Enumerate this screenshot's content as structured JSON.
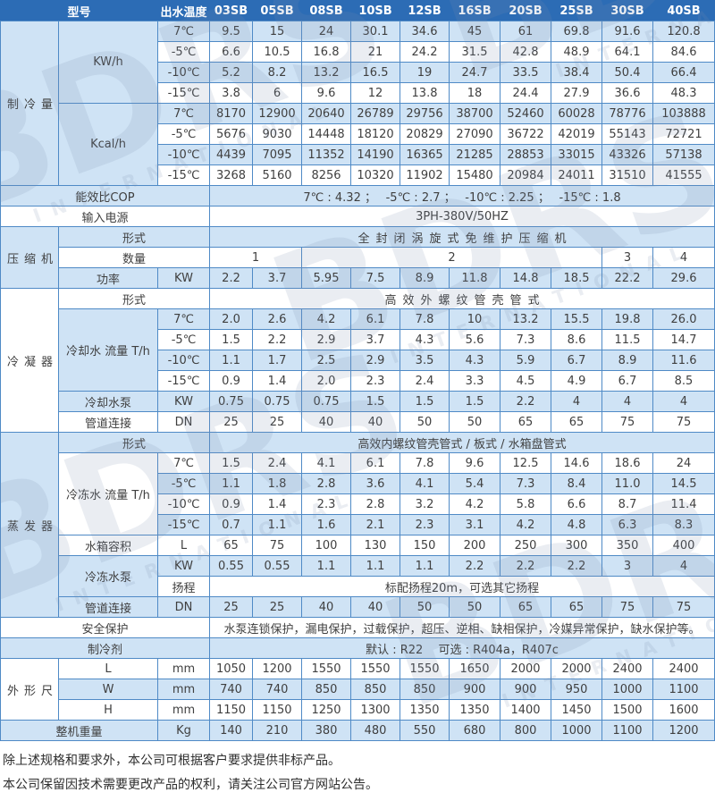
{
  "header": {
    "model": "型号",
    "outlet_temp": "出水温度",
    "models": [
      "03SB",
      "05SB",
      "08SB",
      "10SB",
      "12SB",
      "16SB",
      "20SB",
      "25SB",
      "30SB",
      "40SB"
    ]
  },
  "temps": {
    "t7": "7℃",
    "t5": "-5℃",
    "t10": "-10℃",
    "t15": "-15℃"
  },
  "cooling": {
    "label": "制冷量",
    "kw_label": "KW/h",
    "kcal_label": "Kcal/h",
    "kw": {
      "t7": [
        "9.5",
        "15",
        "24",
        "30.1",
        "34.6",
        "45",
        "61",
        "69.8",
        "91.6",
        "120.8"
      ],
      "t5": [
        "6.6",
        "10.5",
        "16.8",
        "21",
        "24.2",
        "31.5",
        "42.8",
        "48.9",
        "64.1",
        "84.6"
      ],
      "t10": [
        "5.2",
        "8.2",
        "13.2",
        "16.5",
        "19",
        "24.7",
        "33.5",
        "38.4",
        "50.4",
        "66.4"
      ],
      "t15": [
        "3.8",
        "6",
        "9.6",
        "12",
        "13.8",
        "18",
        "24.4",
        "27.9",
        "36.6",
        "48.3"
      ]
    },
    "kcal": {
      "t7": [
        "8170",
        "12900",
        "20640",
        "26789",
        "29756",
        "38700",
        "52460",
        "60028",
        "78776",
        "103888"
      ],
      "t5": [
        "5676",
        "9030",
        "14448",
        "18120",
        "20829",
        "27090",
        "36722",
        "42019",
        "55143",
        "72721"
      ],
      "t10": [
        "4439",
        "7095",
        "11352",
        "14190",
        "16365",
        "21285",
        "28853",
        "33015",
        "43326",
        "57138"
      ],
      "t15": [
        "3268",
        "5160",
        "8256",
        "10320",
        "11902",
        "15480",
        "20984",
        "24011",
        "31510",
        "41555"
      ]
    }
  },
  "cop": {
    "label": "能效比COP",
    "value": "7℃ : 4.32 ；　 -5℃ : 2.7 ；　 -10℃ : 2.25 ；　 -15℃ : 1.8"
  },
  "power_supply": {
    "label": "输入电源",
    "value": "3PH-380V/50HZ"
  },
  "compressor": {
    "label": "压缩机",
    "type_label": "形式",
    "type_value": "全封闭涡旋式免维护压缩机",
    "qty_label": "数量",
    "qty": [
      "1",
      "2",
      "3",
      "4"
    ],
    "power_label": "功率",
    "power_unit": "KW",
    "power": [
      "2.2",
      "3.7",
      "5.95",
      "7.5",
      "8.9",
      "11.8",
      "14.8",
      "18.5",
      "22.2",
      "29.6"
    ]
  },
  "condenser": {
    "label": "冷凝器",
    "type_label": "形式",
    "type_value": "高效外螺纹管壳管式",
    "flow_label": "冷却水 流量 T/h",
    "flow": {
      "t7": [
        "2.0",
        "2.6",
        "4.2",
        "6.1",
        "7.8",
        "10",
        "13.2",
        "15.5",
        "19.8",
        "26.0"
      ],
      "t5": [
        "1.5",
        "2.2",
        "2.9",
        "3.7",
        "4.3",
        "5.6",
        "7.3",
        "8.6",
        "11.5",
        "14.7"
      ],
      "t10": [
        "1.1",
        "1.7",
        "2.5",
        "2.9",
        "3.5",
        "4.3",
        "5.9",
        "6.7",
        "8.9",
        "11.6"
      ],
      "t15": [
        "0.9",
        "1.4",
        "2.0",
        "2.3",
        "2.4",
        "3.3",
        "4.5",
        "4.9",
        "6.7",
        "8.5"
      ]
    },
    "pump_label": "冷却水泵",
    "pump_unit": "KW",
    "pump": [
      "0.75",
      "0.75",
      "0.75",
      "1.5",
      "1.5",
      "1.5",
      "2.2",
      "4",
      "4",
      "4"
    ],
    "pipe_label": "管道连接",
    "pipe_unit": "DN",
    "pipe": [
      "25",
      "25",
      "40",
      "40",
      "50",
      "50",
      "65",
      "65",
      "75",
      "75"
    ]
  },
  "evaporator": {
    "label": "蒸发器",
    "type_label": "形式",
    "type_value": "高效内螺纹管壳管式 / 板式 / 水箱盘管式",
    "flow_label": "冷冻水 流量 T/h",
    "flow": {
      "t7": [
        "1.5",
        "2.4",
        "4.1",
        "6.1",
        "7.8",
        "9.6",
        "12.5",
        "14.6",
        "18.6",
        "24"
      ],
      "t5": [
        "1.1",
        "1.8",
        "2.8",
        "3.6",
        "4.1",
        "5.4",
        "7.3",
        "8.4",
        "11.0",
        "14.5"
      ],
      "t10": [
        "0.9",
        "1.4",
        "2.3",
        "2.8",
        "3.2",
        "4.2",
        "5.8",
        "6.6",
        "8.7",
        "11.4"
      ],
      "t15": [
        "0.7",
        "1.1",
        "1.6",
        "2.1",
        "2.3",
        "3.1",
        "4.2",
        "4.8",
        "6.3",
        "8.3"
      ]
    },
    "tank_label": "水箱容积",
    "tank_unit": "L",
    "tank": [
      "65",
      "75",
      "100",
      "130",
      "150",
      "200",
      "250",
      "300",
      "350",
      "400"
    ],
    "pump_label": "冷冻水泵",
    "pump_unit": "KW",
    "pump": [
      "0.55",
      "0.55",
      "1.1",
      "1.1",
      "1.1",
      "2.2",
      "2.2",
      "2.2",
      "3",
      "4"
    ],
    "lift_label": "扬程",
    "lift_value": "标配扬程20m，可选其它扬程",
    "pipe_label": "管道连接",
    "pipe_unit": "DN",
    "pipe": [
      "25",
      "25",
      "40",
      "40",
      "50",
      "50",
      "65",
      "65",
      "75",
      "75"
    ]
  },
  "safety": {
    "label": "安全保护",
    "value": "水泵连锁保护，漏电保护，过载保护，超压、逆相、缺相保护，冷媒异常保护，缺水保护等。"
  },
  "refrigerant": {
    "label": "制冷剂",
    "value": "默认 : R22　 可选 : R404a，R407c"
  },
  "dimensions": {
    "label": "外形尺寸",
    "unit": "mm",
    "l_label": "L",
    "l": [
      "1050",
      "1200",
      "1550",
      "1550",
      "1550",
      "1650",
      "2000",
      "2000",
      "2400",
      "2400"
    ],
    "w_label": "W",
    "w": [
      "740",
      "740",
      "850",
      "850",
      "850",
      "900",
      "900",
      "950",
      "1000",
      "1100"
    ],
    "h_label": "H",
    "h": [
      "1150",
      "1150",
      "1250",
      "1300",
      "1350",
      "1350",
      "1400",
      "1450",
      "1500",
      "1600"
    ]
  },
  "weight": {
    "label": "整机重量",
    "unit": "Kg",
    "values": [
      "140",
      "210",
      "380",
      "480",
      "550",
      "680",
      "800",
      "1000",
      "1100",
      "1200"
    ]
  },
  "footer": {
    "line1": "除上述规格和要求外，本公司可根据客户要求提供非标产品。",
    "line2": "本公司保留因技术需要更改产品的权利，请关注公司官方网站公告。"
  },
  "watermark": {
    "logo": "BDRS",
    "reg": "®",
    "sub": "INTERNATIONAL"
  }
}
